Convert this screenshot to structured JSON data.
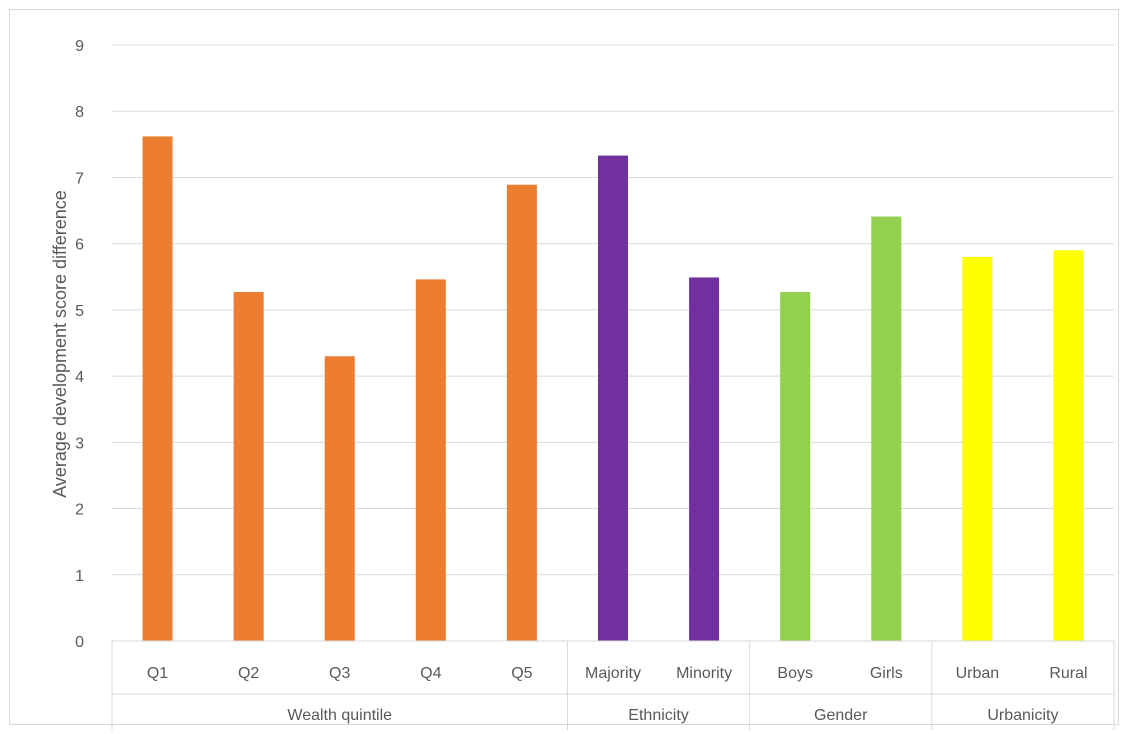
{
  "chart_data": {
    "type": "bar",
    "ylabel": "Average development score difference",
    "xlabel": "",
    "ylim": [
      0,
      9
    ],
    "yticks": [
      0,
      1,
      2,
      3,
      4,
      5,
      6,
      7,
      8,
      9
    ],
    "grid": true,
    "categories": [
      "Q1",
      "Q2",
      "Q3",
      "Q4",
      "Q5",
      "Majority",
      "Minority",
      "Boys",
      "Girls",
      "Urban",
      "Rural"
    ],
    "values": [
      7.62,
      5.27,
      4.3,
      5.46,
      6.89,
      7.33,
      5.49,
      5.27,
      6.41,
      5.8,
      5.9
    ],
    "groups": [
      {
        "label": "Wealth quintile",
        "start": 0,
        "count": 5,
        "color": "#ed7d31"
      },
      {
        "label": "Ethnicity",
        "start": 5,
        "count": 2,
        "color": "#7030a0"
      },
      {
        "label": "Gender",
        "start": 7,
        "count": 2,
        "color": "#92d050"
      },
      {
        "label": "Urbanicity",
        "start": 9,
        "count": 2,
        "color": "#ffff00"
      }
    ]
  }
}
